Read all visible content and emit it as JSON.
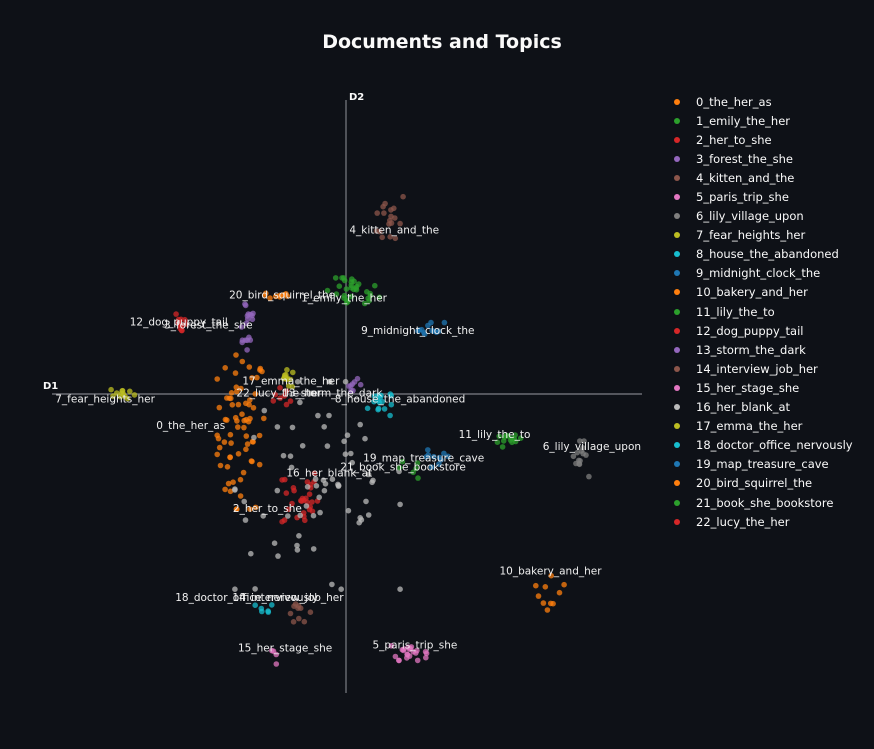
{
  "chart_data": {
    "type": "scatter",
    "title": "Documents and Topics",
    "xlabel": "D1",
    "ylabel": "D2",
    "xlim": [
      -10,
      10
    ],
    "ylim": [
      -10,
      10
    ],
    "legend_position": "right",
    "topics": [
      {
        "name": "0_the_her_as",
        "color": "#ff7f0e",
        "centroid": [
          -3.6,
          -1.2
        ],
        "spread": [
          0.8,
          2.6
        ],
        "count": 70
      },
      {
        "name": "1_emily_the_her",
        "color": "#2ca02c",
        "centroid": [
          0.2,
          3.5
        ],
        "spread": [
          0.9,
          0.5
        ],
        "count": 32
      },
      {
        "name": "2_her_to_she",
        "color": "#d62728",
        "centroid": [
          -1.6,
          -3.4
        ],
        "spread": [
          0.6,
          1.0
        ],
        "count": 30
      },
      {
        "name": "3_forest_the_she",
        "color": "#9467bd",
        "centroid": [
          -3.4,
          2.5
        ],
        "spread": [
          0.3,
          1.0
        ],
        "count": 18
      },
      {
        "name": "4_kitten_and_the",
        "color": "#8c564b",
        "centroid": [
          1.5,
          6.0
        ],
        "spread": [
          0.5,
          0.9
        ],
        "count": 18
      },
      {
        "name": "5_paris_trip_she",
        "color": "#e377c2",
        "centroid": [
          2.1,
          -8.6
        ],
        "spread": [
          0.6,
          0.3
        ],
        "count": 22
      },
      {
        "name": "6_lily_village_upon",
        "color": "#7f7f7f",
        "centroid": [
          7.9,
          -2.1
        ],
        "spread": [
          0.3,
          0.6
        ],
        "count": 14
      },
      {
        "name": "7_fear_heights_her",
        "color": "#bcbd22",
        "centroid": [
          -7.6,
          0.1
        ],
        "spread": [
          0.4,
          0.2
        ],
        "count": 12
      },
      {
        "name": "8_house_the_abandoned",
        "color": "#17becf",
        "centroid": [
          1.1,
          -0.2
        ],
        "spread": [
          0.4,
          0.5
        ],
        "count": 16
      },
      {
        "name": "9_midnight_clock_the",
        "color": "#1f77b4",
        "centroid": [
          2.8,
          2.3
        ],
        "spread": [
          0.5,
          0.2
        ],
        "count": 12
      },
      {
        "name": "10_bakery_and_her",
        "color": "#ff7f0e",
        "centroid": [
          6.9,
          -6.5
        ],
        "spread": [
          0.5,
          0.9
        ],
        "count": 10
      },
      {
        "name": "11_lily_the_to",
        "color": "#2ca02c",
        "centroid": [
          5.5,
          -1.5
        ],
        "spread": [
          0.4,
          0.2
        ],
        "count": 14
      },
      {
        "name": "12_dog_puppy_tail",
        "color": "#d62728",
        "centroid": [
          -5.6,
          2.5
        ],
        "spread": [
          0.2,
          0.4
        ],
        "count": 12
      },
      {
        "name": "13_storm_the_dark",
        "color": "#9467bd",
        "centroid": [
          0.2,
          0.4
        ],
        "spread": [
          0.3,
          0.2
        ],
        "count": 8
      },
      {
        "name": "14_interview_job_her",
        "color": "#8c564b",
        "centroid": [
          -1.6,
          -7.3
        ],
        "spread": [
          0.4,
          0.3
        ],
        "count": 10
      },
      {
        "name": "15_her_stage_she",
        "color": "#e377c2",
        "centroid": [
          -2.5,
          -8.7
        ],
        "spread": [
          0.2,
          0.4
        ],
        "count": 4
      },
      {
        "name": "16_her_blank_at",
        "color": "#bbbbbb",
        "centroid": [
          -1.0,
          -3.0
        ],
        "spread": [
          2.8,
          3.5
        ],
        "count": 70
      },
      {
        "name": "17_emma_the_her",
        "color": "#bcbd22",
        "centroid": [
          -2.0,
          0.6
        ],
        "spread": [
          0.3,
          0.3
        ],
        "count": 12
      },
      {
        "name": "18_doctor_office_nervously",
        "color": "#17becf",
        "centroid": [
          -2.9,
          -7.2
        ],
        "spread": [
          0.4,
          0.2
        ],
        "count": 6
      },
      {
        "name": "19_map_treasure_cave",
        "color": "#1f77b4",
        "centroid": [
          2.9,
          -2.2
        ],
        "spread": [
          0.6,
          0.4
        ],
        "count": 10
      },
      {
        "name": "20_bird_squirrel_the",
        "color": "#ff7f0e",
        "centroid": [
          -2.3,
          3.4
        ],
        "spread": [
          0.6,
          0.1
        ],
        "count": 10
      },
      {
        "name": "21_book_she_bookstore",
        "color": "#2ca02c",
        "centroid": [
          2.0,
          -2.5
        ],
        "spread": [
          0.5,
          0.3
        ],
        "count": 6
      },
      {
        "name": "22_lucy_the_her",
        "color": "#d62728",
        "centroid": [
          -2.1,
          0.0
        ],
        "spread": [
          0.4,
          0.3
        ],
        "count": 8
      }
    ],
    "topic_labels": [
      {
        "text": "0_the_her_as",
        "x": -5.3,
        "y": -1.1
      },
      {
        "text": "1_emily_the_her",
        "x": -0.1,
        "y": 3.2
      },
      {
        "text": "2_her_to_she",
        "x": -2.7,
        "y": -3.9
      },
      {
        "text": "3_forest_the_she",
        "x": -4.7,
        "y": 2.3
      },
      {
        "text": "4_kitten_and_the",
        "x": 1.6,
        "y": 5.5
      },
      {
        "text": "5_paris_trip_she",
        "x": 2.3,
        "y": -8.5
      },
      {
        "text": "6_lily_village_upon",
        "x": 8.3,
        "y": -1.8
      },
      {
        "text": "7_fear_heights_her",
        "x": -8.2,
        "y": -0.2
      },
      {
        "text": "8_house_the_abandoned",
        "x": 1.8,
        "y": -0.2
      },
      {
        "text": "9_midnight_clock_the",
        "x": 2.4,
        "y": 2.1
      },
      {
        "text": "10_bakery_and_her",
        "x": 6.9,
        "y": -6.0
      },
      {
        "text": "11_lily_the_to",
        "x": 5.0,
        "y": -1.4
      },
      {
        "text": "12_dog_puppy_tail",
        "x": -5.7,
        "y": 2.4
      },
      {
        "text": "13_storm_the_dark",
        "x": -0.5,
        "y": 0.0
      },
      {
        "text": "14_interview_job_her",
        "x": -2.0,
        "y": -6.9
      },
      {
        "text": "15_her_stage_she",
        "x": -2.1,
        "y": -8.6
      },
      {
        "text": "16_her_blank_at",
        "x": -0.6,
        "y": -2.7
      },
      {
        "text": "17_emma_the_her",
        "x": -1.9,
        "y": 0.4
      },
      {
        "text": "18_doctor_office_nervously",
        "x": -3.4,
        "y": -6.9
      },
      {
        "text": "19_map_treasure_cave",
        "x": 2.6,
        "y": -2.2
      },
      {
        "text": "20_bird_squirrel_the",
        "x": -2.2,
        "y": 3.3
      },
      {
        "text": "21_book_she_bookstore",
        "x": 1.9,
        "y": -2.5
      },
      {
        "text": "22_lucy_the_her",
        "x": -2.3,
        "y": 0.0
      }
    ]
  }
}
